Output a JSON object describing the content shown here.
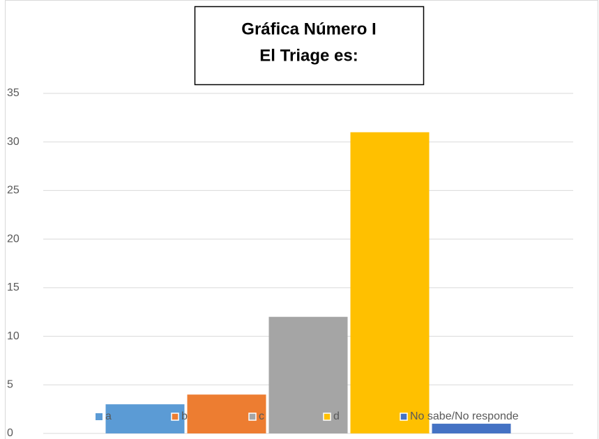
{
  "chart_data": {
    "type": "bar",
    "title": [
      "Gráfica Número I",
      "El Triage es:"
    ],
    "categories": [
      null
    ],
    "series": [
      {
        "name": "a",
        "color": "#5b9bd5",
        "values": [
          3
        ]
      },
      {
        "name": "b",
        "color": "#ed7d31",
        "values": [
          4
        ]
      },
      {
        "name": "c",
        "color": "#a5a5a5",
        "values": [
          12
        ]
      },
      {
        "name": "d",
        "color": "#ffc000",
        "values": [
          31
        ]
      },
      {
        "name": "No sabe/No responde",
        "color": "#4472c4",
        "values": [
          1
        ]
      }
    ],
    "ylim": [
      0,
      35
    ],
    "yticks": [
      0,
      5,
      10,
      15,
      20,
      25,
      30,
      35
    ],
    "grid": true,
    "legend": "bottom"
  }
}
